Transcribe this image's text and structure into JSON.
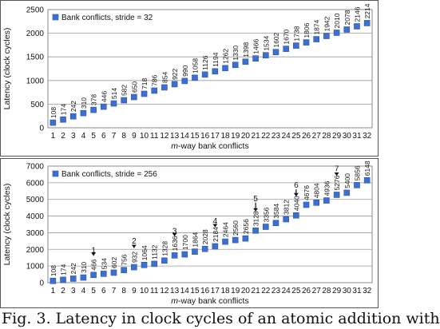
{
  "caption": "Fig. 3.  Latency in clock cycles of an atomic addition with",
  "chart_data": [
    {
      "type": "scatter",
      "xlabel": "m-way bank conflicts",
      "xlabel_italic": "m",
      "xlabel_rest": "-way bank conflicts",
      "ylabel": "Latency (clock cycles)",
      "ylim": [
        0,
        2500
      ],
      "yticks": [
        "0",
        "500",
        "1000",
        "1500",
        "2000",
        "2500"
      ],
      "x": [
        1,
        2,
        3,
        4,
        5,
        6,
        7,
        8,
        9,
        10,
        11,
        12,
        13,
        14,
        15,
        16,
        17,
        18,
        19,
        20,
        21,
        22,
        23,
        24,
        25,
        26,
        27,
        28,
        29,
        30,
        31,
        32
      ],
      "series": [
        {
          "name": "Bank conflicts, stride = 32",
          "values": [
            108,
            174,
            242,
            310,
            378,
            446,
            514,
            582,
            650,
            718,
            786,
            854,
            922,
            990,
            1058,
            1126,
            1194,
            1262,
            1330,
            1398,
            1466,
            1534,
            1602,
            1670,
            1738,
            1806,
            1874,
            1942,
            2010,
            2078,
            2146,
            2214
          ]
        }
      ],
      "data_labels": [
        "108",
        "174",
        "242",
        "310",
        "378",
        "446",
        "514",
        "582",
        "650",
        "718",
        "786",
        "854",
        "922",
        "990",
        "1058",
        "1126",
        "1194",
        "1262",
        "1330",
        "1398",
        "1466",
        "1534",
        "1602",
        "1670",
        "1738",
        "1806",
        "1874",
        "1942",
        "2010",
        "2078",
        "2146",
        "2214"
      ],
      "grid": true,
      "legend": "top-left",
      "annotations": []
    },
    {
      "type": "scatter",
      "xlabel": "m-way bank conflicts",
      "xlabel_italic": "m",
      "xlabel_rest": "-way bank conflicts",
      "ylabel": "Latency (clock cycles)",
      "ylim": [
        0,
        7000
      ],
      "yticks": [
        "0",
        "1000",
        "2000",
        "3000",
        "4000",
        "5000",
        "6000",
        "7000"
      ],
      "x": [
        1,
        2,
        3,
        4,
        5,
        6,
        7,
        8,
        9,
        10,
        11,
        12,
        13,
        14,
        15,
        16,
        17,
        18,
        19,
        20,
        21,
        22,
        23,
        24,
        25,
        26,
        27,
        28,
        29,
        30,
        31,
        32
      ],
      "series": [
        {
          "name": "Bank conflicts, stride = 256",
          "values": [
            108,
            174,
            242,
            310,
            466,
            534,
            602,
            756,
            932,
            1064,
            1132,
            1328,
            1636,
            1700,
            1864,
            2028,
            2184,
            2464,
            2560,
            2656,
            3128,
            3356,
            3584,
            3812,
            4040,
            4676,
            4804,
            4936,
            5276,
            5400,
            5856,
            6148
          ]
        }
      ],
      "data_labels": [
        "108",
        "174",
        "242",
        "310",
        "466",
        "534",
        "602",
        "756",
        "932",
        "1064",
        "1132",
        "1328",
        "1636",
        "1700",
        "1864",
        "2028",
        "2184",
        "2464",
        "2560",
        "2656",
        "3128",
        "3356",
        "3584",
        "3812",
        "4040",
        "4676",
        "4804",
        "4936",
        "5276",
        "5400",
        "5856",
        "6148"
      ],
      "grid": true,
      "legend": "top-left",
      "annotations": [
        {
          "text": "1",
          "x": 5,
          "y": 1800
        },
        {
          "text": "2",
          "x": 9,
          "y": 2350
        },
        {
          "text": "3",
          "x": 13,
          "y": 2950
        },
        {
          "text": "4",
          "x": 17,
          "y": 3550
        },
        {
          "text": "5",
          "x": 21,
          "y": 4900
        },
        {
          "text": "6",
          "x": 25,
          "y": 5700
        },
        {
          "text": "7",
          "x": 29,
          "y": 6700
        }
      ]
    }
  ]
}
